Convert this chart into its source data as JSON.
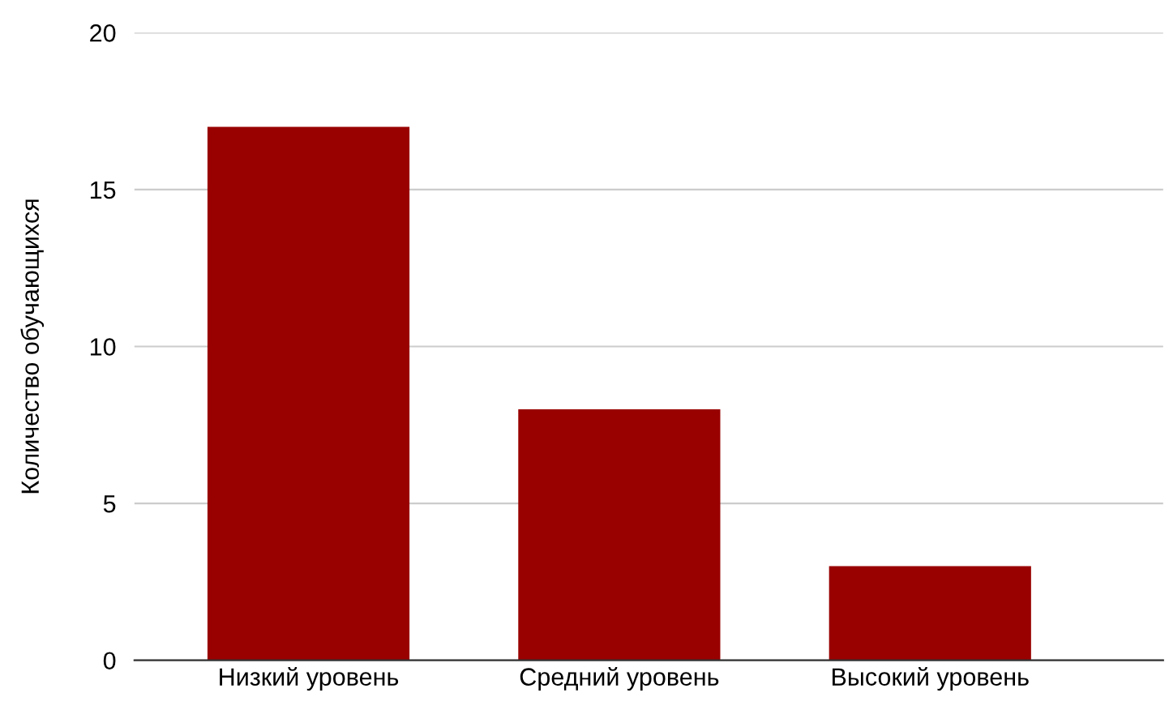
{
  "chart_data": {
    "type": "bar",
    "ylabel": "Количество обучающихся",
    "categories": [
      "Низкий уровень",
      "Средний уровень",
      "Высокий уровень"
    ],
    "values": [
      17,
      8,
      3
    ],
    "color": "#990000",
    "ylim": [
      0,
      20
    ],
    "yticks": [
      0,
      5,
      10,
      15,
      20
    ],
    "grid": "y"
  }
}
